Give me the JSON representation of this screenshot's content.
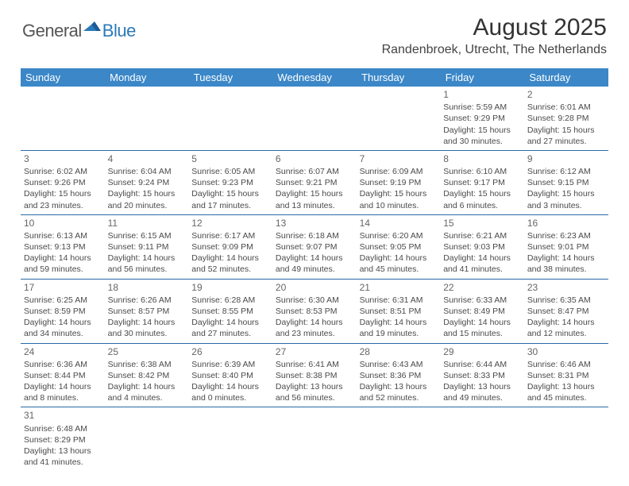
{
  "logo": {
    "text1": "General",
    "text2": "Blue"
  },
  "title": "August 2025",
  "location": "Randenbroek, Utrecht, The Netherlands",
  "colors": {
    "header_bg": "#3b87c8",
    "header_text": "#ffffff",
    "row_border": "#2a6aa8",
    "daynum": "#666666",
    "body_text": "#4a4a4a",
    "logo_gray": "#555555",
    "logo_blue": "#2a7ab8"
  },
  "day_headers": [
    "Sunday",
    "Monday",
    "Tuesday",
    "Wednesday",
    "Thursday",
    "Friday",
    "Saturday"
  ],
  "weeks": [
    [
      null,
      null,
      null,
      null,
      null,
      {
        "n": "1",
        "sr": "5:59 AM",
        "ss": "9:29 PM",
        "dl": "15 hours and 30 minutes."
      },
      {
        "n": "2",
        "sr": "6:01 AM",
        "ss": "9:28 PM",
        "dl": "15 hours and 27 minutes."
      }
    ],
    [
      {
        "n": "3",
        "sr": "6:02 AM",
        "ss": "9:26 PM",
        "dl": "15 hours and 23 minutes."
      },
      {
        "n": "4",
        "sr": "6:04 AM",
        "ss": "9:24 PM",
        "dl": "15 hours and 20 minutes."
      },
      {
        "n": "5",
        "sr": "6:05 AM",
        "ss": "9:23 PM",
        "dl": "15 hours and 17 minutes."
      },
      {
        "n": "6",
        "sr": "6:07 AM",
        "ss": "9:21 PM",
        "dl": "15 hours and 13 minutes."
      },
      {
        "n": "7",
        "sr": "6:09 AM",
        "ss": "9:19 PM",
        "dl": "15 hours and 10 minutes."
      },
      {
        "n": "8",
        "sr": "6:10 AM",
        "ss": "9:17 PM",
        "dl": "15 hours and 6 minutes."
      },
      {
        "n": "9",
        "sr": "6:12 AM",
        "ss": "9:15 PM",
        "dl": "15 hours and 3 minutes."
      }
    ],
    [
      {
        "n": "10",
        "sr": "6:13 AM",
        "ss": "9:13 PM",
        "dl": "14 hours and 59 minutes."
      },
      {
        "n": "11",
        "sr": "6:15 AM",
        "ss": "9:11 PM",
        "dl": "14 hours and 56 minutes."
      },
      {
        "n": "12",
        "sr": "6:17 AM",
        "ss": "9:09 PM",
        "dl": "14 hours and 52 minutes."
      },
      {
        "n": "13",
        "sr": "6:18 AM",
        "ss": "9:07 PM",
        "dl": "14 hours and 49 minutes."
      },
      {
        "n": "14",
        "sr": "6:20 AM",
        "ss": "9:05 PM",
        "dl": "14 hours and 45 minutes."
      },
      {
        "n": "15",
        "sr": "6:21 AM",
        "ss": "9:03 PM",
        "dl": "14 hours and 41 minutes."
      },
      {
        "n": "16",
        "sr": "6:23 AM",
        "ss": "9:01 PM",
        "dl": "14 hours and 38 minutes."
      }
    ],
    [
      {
        "n": "17",
        "sr": "6:25 AM",
        "ss": "8:59 PM",
        "dl": "14 hours and 34 minutes."
      },
      {
        "n": "18",
        "sr": "6:26 AM",
        "ss": "8:57 PM",
        "dl": "14 hours and 30 minutes."
      },
      {
        "n": "19",
        "sr": "6:28 AM",
        "ss": "8:55 PM",
        "dl": "14 hours and 27 minutes."
      },
      {
        "n": "20",
        "sr": "6:30 AM",
        "ss": "8:53 PM",
        "dl": "14 hours and 23 minutes."
      },
      {
        "n": "21",
        "sr": "6:31 AM",
        "ss": "8:51 PM",
        "dl": "14 hours and 19 minutes."
      },
      {
        "n": "22",
        "sr": "6:33 AM",
        "ss": "8:49 PM",
        "dl": "14 hours and 15 minutes."
      },
      {
        "n": "23",
        "sr": "6:35 AM",
        "ss": "8:47 PM",
        "dl": "14 hours and 12 minutes."
      }
    ],
    [
      {
        "n": "24",
        "sr": "6:36 AM",
        "ss": "8:44 PM",
        "dl": "14 hours and 8 minutes."
      },
      {
        "n": "25",
        "sr": "6:38 AM",
        "ss": "8:42 PM",
        "dl": "14 hours and 4 minutes."
      },
      {
        "n": "26",
        "sr": "6:39 AM",
        "ss": "8:40 PM",
        "dl": "14 hours and 0 minutes."
      },
      {
        "n": "27",
        "sr": "6:41 AM",
        "ss": "8:38 PM",
        "dl": "13 hours and 56 minutes."
      },
      {
        "n": "28",
        "sr": "6:43 AM",
        "ss": "8:36 PM",
        "dl": "13 hours and 52 minutes."
      },
      {
        "n": "29",
        "sr": "6:44 AM",
        "ss": "8:33 PM",
        "dl": "13 hours and 49 minutes."
      },
      {
        "n": "30",
        "sr": "6:46 AM",
        "ss": "8:31 PM",
        "dl": "13 hours and 45 minutes."
      }
    ],
    [
      {
        "n": "31",
        "sr": "6:48 AM",
        "ss": "8:29 PM",
        "dl": "13 hours and 41 minutes."
      },
      null,
      null,
      null,
      null,
      null,
      null
    ]
  ],
  "labels": {
    "sunrise": "Sunrise: ",
    "sunset": "Sunset: ",
    "daylight": "Daylight: "
  }
}
